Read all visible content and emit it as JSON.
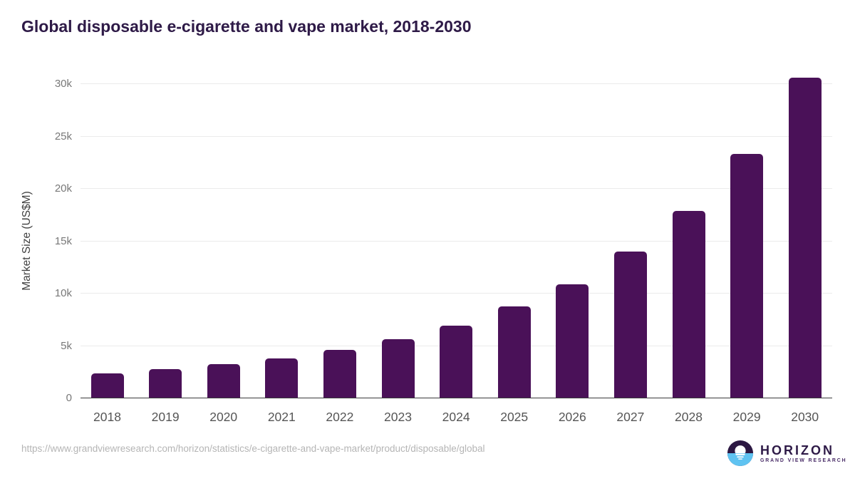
{
  "page": {
    "title": "Global disposable e-cigarette and vape market, 2018-2030",
    "source_url": "https://www.grandviewresearch.com/horizon/statistics/e-cigarette-and-vape-market/product/disposable/global"
  },
  "branding": {
    "logo_title": "HORIZON",
    "logo_subtitle": "GRAND VIEW RESEARCH",
    "logo_purple": "#2c1843",
    "logo_blue": "#5fc3f1"
  },
  "chart_data": {
    "type": "bar",
    "title": "Global disposable e-cigarette and vape market, 2018-2030",
    "xlabel": "",
    "ylabel": "Market Size (US$M)",
    "categories": [
      "2018",
      "2019",
      "2020",
      "2021",
      "2022",
      "2023",
      "2024",
      "2025",
      "2026",
      "2027",
      "2028",
      "2029",
      "2030"
    ],
    "values": [
      2290,
      2720,
      3200,
      3720,
      4580,
      5600,
      6900,
      8690,
      10840,
      13930,
      17850,
      23280,
      30540
    ],
    "yticks": [
      0,
      5000,
      10000,
      15000,
      20000,
      25000,
      30000
    ],
    "ytick_labels": [
      "0",
      "5k",
      "10k",
      "15k",
      "20k",
      "25k",
      "30k"
    ],
    "ylim": [
      0,
      31300
    ],
    "bar_color": "#4a1158",
    "grid": true,
    "legend": "none"
  }
}
